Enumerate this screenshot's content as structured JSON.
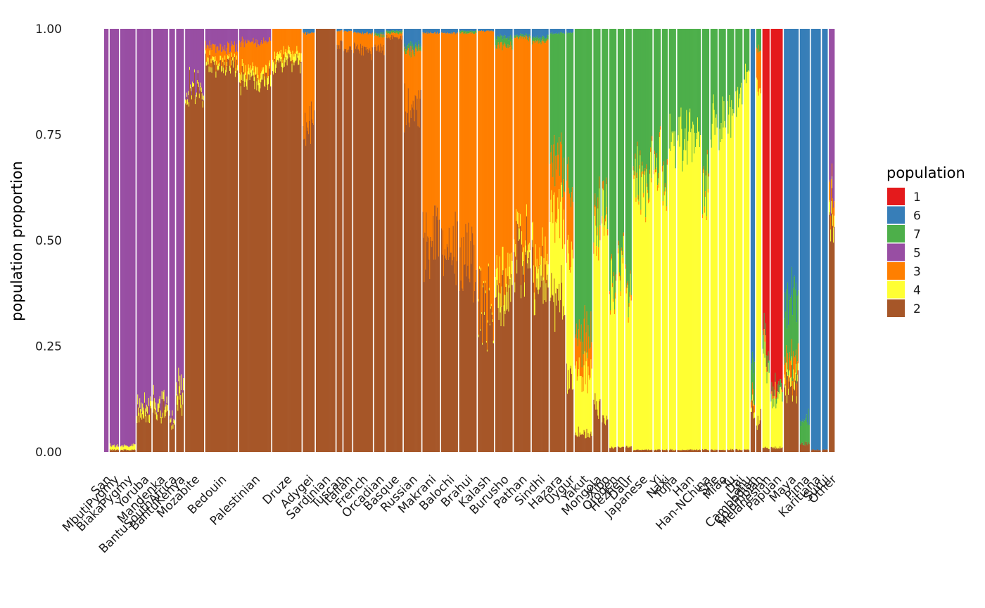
{
  "chart_data": {
    "type": "bar",
    "subtype": "stacked-admixture",
    "ylabel": "population proportion",
    "xlabel": "",
    "ylim": [
      0,
      1
    ],
    "yticks": [
      "0.00",
      "0.25",
      "0.50",
      "0.75",
      "1.00"
    ],
    "legend": {
      "title": "population",
      "entries": [
        {
          "key": "1",
          "color": "#E41A1C"
        },
        {
          "key": "6",
          "color": "#377EB8"
        },
        {
          "key": "7",
          "color": "#4DAF4A"
        },
        {
          "key": "5",
          "color": "#984EA3"
        },
        {
          "key": "3",
          "color": "#FF7F00"
        },
        {
          "key": "4",
          "color": "#FFFF33"
        },
        {
          "key": "2",
          "color": "#A65628"
        }
      ]
    },
    "stack_order": [
      "1",
      "6",
      "7",
      "5",
      "3",
      "4",
      "2"
    ],
    "groups": [
      {
        "name": "San",
        "n": 6,
        "v": {
          "5": 1.0
        }
      },
      {
        "name": "MbutiPygmy",
        "n": 13,
        "v": {
          "5": 0.985,
          "4": 0.01,
          "2": 0.005
        }
      },
      {
        "name": "BiakaPygmy",
        "n": 22,
        "v": {
          "5": 0.985,
          "4": 0.01,
          "2": 0.005
        }
      },
      {
        "name": "Yoruba",
        "n": 21,
        "v": {
          "5": 0.9,
          "4": 0.02,
          "2": 0.08
        }
      },
      {
        "name": "Mandenka",
        "n": 22,
        "v": {
          "5": 0.88,
          "4": 0.02,
          "2": 0.1
        }
      },
      {
        "name": "BantuSouthAfrica",
        "n": 8,
        "v": {
          "5": 0.92,
          "4": 0.01,
          "2": 0.07
        }
      },
      {
        "name": "BantuKenya",
        "n": 11,
        "v": {
          "5": 0.85,
          "4": 0.03,
          "2": 0.12
        }
      },
      {
        "name": "Mozabite",
        "n": 27,
        "v": {
          "5": 0.14,
          "4": 0.01,
          "2": 0.85
        }
      },
      {
        "name": "Bedouin",
        "n": 47,
        "v": {
          "5": 0.04,
          "3": 0.03,
          "4": 0.01,
          "2": 0.92
        }
      },
      {
        "name": "Palestinian",
        "n": 46,
        "v": {
          "5": 0.03,
          "3": 0.07,
          "4": 0.02,
          "2": 0.88
        }
      },
      {
        "name": "Druze",
        "n": 42,
        "v": {
          "3": 0.06,
          "4": 0.02,
          "2": 0.92
        }
      },
      {
        "name": "Adygei",
        "n": 17,
        "v": {
          "6": 0.01,
          "3": 0.21,
          "2": 0.78
        }
      },
      {
        "name": "Sardinian",
        "n": 28,
        "v": {
          "2": 1.0
        }
      },
      {
        "name": "Tuscan",
        "n": 8,
        "v": {
          "6": 0.005,
          "3": 0.03,
          "2": 0.965
        }
      },
      {
        "name": "Italian",
        "n": 12,
        "v": {
          "6": 0.005,
          "3": 0.04,
          "2": 0.955
        }
      },
      {
        "name": "French",
        "n": 28,
        "v": {
          "6": 0.01,
          "3": 0.04,
          "2": 0.95
        }
      },
      {
        "name": "Orcadian",
        "n": 15,
        "v": {
          "6": 0.01,
          "7": 0.005,
          "3": 0.03,
          "2": 0.955
        }
      },
      {
        "name": "Basque",
        "n": 24,
        "v": {
          "6": 0.005,
          "7": 0.005,
          "3": 0.01,
          "2": 0.98
        }
      },
      {
        "name": "Russian",
        "n": 25,
        "v": {
          "6": 0.04,
          "7": 0.01,
          "3": 0.13,
          "2": 0.82
        }
      },
      {
        "name": "Makrani",
        "n": 25,
        "v": {
          "6": 0.01,
          "3": 0.49,
          "2": 0.5
        }
      },
      {
        "name": "Balochi",
        "n": 24,
        "v": {
          "6": 0.01,
          "3": 0.52,
          "2": 0.47
        }
      },
      {
        "name": "Brahui",
        "n": 25,
        "v": {
          "6": 0.005,
          "7": 0.005,
          "3": 0.54,
          "2": 0.45
        }
      },
      {
        "name": "Kalash",
        "n": 23,
        "v": {
          "6": 0.005,
          "3": 0.655,
          "4": 0.005,
          "2": 0.335
        }
      },
      {
        "name": "Burusho",
        "n": 25,
        "v": {
          "6": 0.02,
          "7": 0.02,
          "3": 0.56,
          "4": 0.05,
          "2": 0.35
        }
      },
      {
        "name": "Pathan",
        "n": 24,
        "v": {
          "6": 0.015,
          "7": 0.005,
          "3": 0.49,
          "4": 0.03,
          "2": 0.46
        }
      },
      {
        "name": "Sindhi",
        "n": 24,
        "v": {
          "6": 0.02,
          "7": 0.01,
          "3": 0.51,
          "4": 0.05,
          "2": 0.41
        }
      },
      {
        "name": "Hazara",
        "n": 22,
        "v": {
          "6": 0.01,
          "7": 0.3,
          "3": 0.13,
          "4": 0.2,
          "2": 0.36
        }
      },
      {
        "name": "Uygur",
        "n": 10,
        "v": {
          "6": 0.01,
          "7": 0.34,
          "3": 0.17,
          "4": 0.3,
          "2": 0.18
        }
      },
      {
        "name": "Yakut",
        "n": 25,
        "v": {
          "7": 0.74,
          "3": 0.08,
          "4": 0.14,
          "2": 0.04
        }
      },
      {
        "name": "Mongola",
        "n": 10,
        "v": {
          "7": 0.44,
          "3": 0.03,
          "4": 0.43,
          "2": 0.1
        }
      },
      {
        "name": "Xibo",
        "n": 9,
        "v": {
          "7": 0.42,
          "3": 0.02,
          "4": 0.48,
          "2": 0.08
        }
      },
      {
        "name": "Oroqen",
        "n": 10,
        "v": {
          "7": 0.62,
          "3": 0.01,
          "4": 0.36,
          "2": 0.01
        }
      },
      {
        "name": "Hezhen",
        "n": 9,
        "v": {
          "7": 0.56,
          "3": 0.01,
          "4": 0.42,
          "2": 0.01
        }
      },
      {
        "name": "Daur",
        "n": 9,
        "v": {
          "7": 0.62,
          "3": 0.01,
          "4": 0.36,
          "2": 0.01
        }
      },
      {
        "name": "Japanese",
        "n": 28,
        "v": {
          "7": 0.35,
          "3": 0.01,
          "4": 0.635,
          "2": 0.005
        }
      },
      {
        "name": "Yi",
        "n": 10,
        "v": {
          "7": 0.32,
          "3": 0.01,
          "4": 0.665,
          "2": 0.005
        }
      },
      {
        "name": "Naxi",
        "n": 8,
        "v": {
          "7": 0.34,
          "3": 0.01,
          "4": 0.645,
          "2": 0.005
        }
      },
      {
        "name": "Tujia",
        "n": 10,
        "v": {
          "7": 0.27,
          "4": 0.725,
          "2": 0.005
        }
      },
      {
        "name": "Han",
        "n": 34,
        "v": {
          "7": 0.25,
          "4": 0.745,
          "2": 0.005
        }
      },
      {
        "name": "Han-NChina",
        "n": 10,
        "v": {
          "7": 0.37,
          "3": 0.01,
          "4": 0.615,
          "2": 0.005
        }
      },
      {
        "name": "She",
        "n": 10,
        "v": {
          "7": 0.22,
          "4": 0.775,
          "2": 0.005
        }
      },
      {
        "name": "Miao",
        "n": 10,
        "v": {
          "7": 0.22,
          "4": 0.775,
          "2": 0.005
        }
      },
      {
        "name": "Tu",
        "n": 10,
        "v": {
          "7": 0.2,
          "4": 0.795,
          "2": 0.005
        }
      },
      {
        "name": "Dai",
        "n": 10,
        "v": {
          "7": 0.16,
          "4": 0.835,
          "2": 0.005
        }
      },
      {
        "name": "Lahu",
        "n": 8,
        "v": {
          "7": 0.1,
          "4": 0.895,
          "2": 0.005
        }
      },
      {
        "name": "Cambodian",
        "n": 6,
        "v": {
          "6": 0.8,
          "7": 0.08,
          "3": 0.02,
          "4": 0.01,
          "2": 0.09
        }
      },
      {
        "name": "Colombian",
        "n": 7,
        "v": {
          "7": 0.04,
          "3": 0.1,
          "4": 0.79,
          "2": 0.07
        }
      },
      {
        "name": "Melanesian",
        "n": 10,
        "v": {
          "1": 0.75,
          "7": 0.03,
          "4": 0.21,
          "2": 0.01
        }
      },
      {
        "name": "Papuan",
        "n": 17,
        "v": {
          "1": 0.85,
          "7": 0.02,
          "4": 0.12,
          "2": 0.01
        }
      },
      {
        "name": "Maya",
        "n": 21,
        "v": {
          "6": 0.64,
          "7": 0.14,
          "3": 0.04,
          "4": 0.02,
          "2": 0.16
        }
      },
      {
        "name": "Pima",
        "n": 14,
        "v": {
          "6": 0.92,
          "7": 0.06,
          "2": 0.02
        }
      },
      {
        "name": "Karitiana",
        "n": 14,
        "v": {
          "6": 0.995,
          "2": 0.005
        }
      },
      {
        "name": "Surui",
        "n": 8,
        "v": {
          "6": 0.995,
          "2": 0.005
        }
      },
      {
        "name": "Other",
        "n": 8,
        "v": {
          "5": 0.37,
          "3": 0.04,
          "4": 0.03,
          "2": 0.56
        }
      }
    ]
  }
}
